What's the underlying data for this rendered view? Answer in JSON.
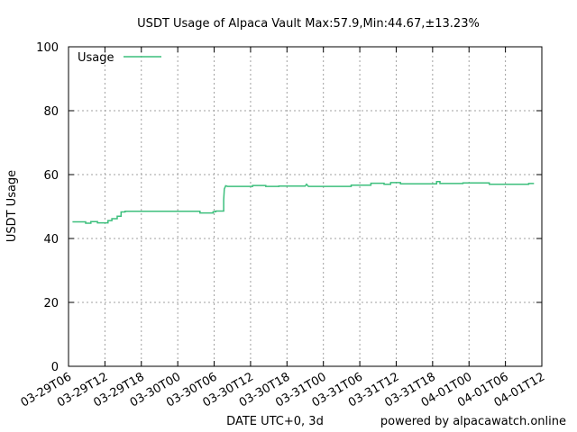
{
  "chart_data": {
    "type": "line",
    "title": "USDT Usage of Alpaca Vault Max:57.9,Min:44.67,±13.23%",
    "xlabel": "DATE UTC+0, 3d",
    "ylabel": "USDT Usage",
    "footer": "powered by alpacawatch.online",
    "ylim": [
      0,
      100
    ],
    "yticks": [
      0,
      20,
      40,
      60,
      80,
      100
    ],
    "xlim_hours": [
      0,
      72
    ],
    "xticks": [
      "03-29T06",
      "03-29T12",
      "03-29T18",
      "03-30T00",
      "03-30T06",
      "03-30T12",
      "03-30T18",
      "03-31T00",
      "03-31T06",
      "03-31T12",
      "03-31T18",
      "04-01T00",
      "04-01T06",
      "04-01T12"
    ],
    "grid": true,
    "legend_position": "top-left",
    "series": [
      {
        "name": "Usage",
        "color": "#3cbf7c",
        "x_hours_from_03-29T06": [
          0.6,
          2.6,
          2.6,
          3.4,
          3.4,
          4.4,
          4.4,
          6.0,
          6.0,
          6.6,
          6.6,
          7.4,
          7.4,
          8.0,
          8.0,
          8.6,
          8.6,
          9.4,
          9.4,
          20.0,
          20.0,
          22.0,
          22.0,
          22.4,
          22.4,
          23.6,
          23.6,
          23.7,
          23.9,
          24.2,
          24.5,
          28.0,
          28.0,
          30.0,
          30.0,
          32.0,
          32.0,
          36.0,
          36.0,
          36.2,
          36.2,
          36.5,
          36.5,
          43.0,
          43.0,
          46.0,
          46.0,
          48.0,
          48.0,
          49.0,
          49.0,
          50.5,
          50.5,
          51.0,
          51.0,
          56.0,
          56.0,
          56.5,
          56.5,
          57.5,
          57.5,
          60.0,
          60.0,
          64.0,
          64.0,
          70.0,
          70.0,
          70.8
        ],
        "values": [
          45.2,
          45.2,
          44.8,
          44.8,
          45.3,
          45.3,
          44.9,
          44.9,
          45.6,
          45.6,
          46.2,
          46.2,
          47.0,
          47.0,
          48.3,
          48.3,
          48.5,
          48.5,
          48.5,
          48.5,
          48.0,
          48.0,
          48.4,
          48.4,
          48.6,
          48.6,
          52.0,
          55.5,
          56.5,
          56.3,
          56.3,
          56.3,
          56.6,
          56.6,
          56.3,
          56.3,
          56.4,
          56.4,
          56.4,
          57.0,
          57.0,
          56.3,
          56.3,
          56.3,
          56.7,
          56.7,
          57.3,
          57.3,
          57.0,
          57.0,
          57.5,
          57.5,
          57.1,
          57.1,
          57.1,
          57.1,
          57.8,
          57.8,
          57.2,
          57.2,
          57.2,
          57.2,
          57.4,
          57.4,
          57.0,
          57.0,
          57.2,
          57.2
        ]
      }
    ]
  }
}
